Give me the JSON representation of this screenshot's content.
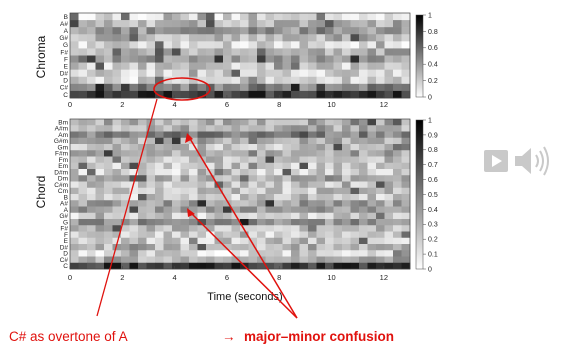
{
  "chart_data": [
    {
      "type": "heatmap",
      "title": "Chroma",
      "ylabel": "Chroma",
      "x_ticks": [
        "0",
        "2",
        "4",
        "6",
        "8",
        "10",
        "12"
      ],
      "xlim": [
        0,
        13
      ],
      "y_labels": [
        "B",
        "A#",
        "A",
        "G#",
        "G",
        "F#",
        "F",
        "E",
        "D#",
        "D",
        "C#",
        "C"
      ],
      "colorbar": {
        "ticks": [
          "1",
          "0.8",
          "0.6",
          "0.4",
          "0.2",
          "0"
        ],
        "range": [
          0,
          1
        ]
      },
      "colormap": "gray_reversed",
      "frames": 40,
      "grid": false
    },
    {
      "type": "heatmap",
      "title": "Chord",
      "ylabel": "Chord",
      "xlabel": "Time (seconds)",
      "x_ticks": [
        "0",
        "2",
        "4",
        "6",
        "8",
        "10",
        "12"
      ],
      "xlim": [
        0,
        13
      ],
      "y_labels": [
        "Bm",
        "A#m",
        "Am",
        "G#m",
        "Gm",
        "F#m",
        "Fm",
        "Em",
        "D#m",
        "Dm",
        "C#m",
        "Cm",
        "B",
        "A#",
        "A",
        "G#",
        "G",
        "F#",
        "F",
        "E",
        "D#",
        "D",
        "C#",
        "C"
      ],
      "colorbar": {
        "ticks": [
          "1",
          "0.9",
          "0.8",
          "0.7",
          "0.6",
          "0.5",
          "0.4",
          "0.3",
          "0.2",
          "0.1",
          "0"
        ],
        "range": [
          0,
          1
        ]
      },
      "colormap": "gray_reversed",
      "frames": 40,
      "grid": false
    }
  ],
  "annotations": {
    "overtone": "C# as overtone of A",
    "arrow": "→",
    "confusion": "major–minor confusion"
  },
  "colors": {
    "annotation": "#e0120e",
    "media_button": "#c9c9c9"
  },
  "media": {
    "play_icon": "play-icon",
    "speaker_icon": "speaker-icon"
  }
}
